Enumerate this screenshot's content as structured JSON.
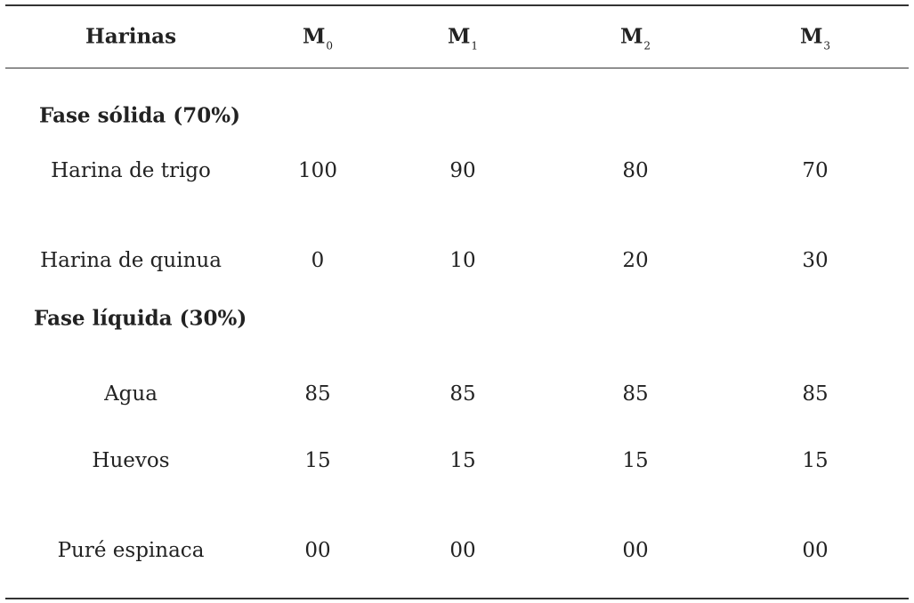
{
  "header": {
    "col0": "Harinas",
    "m0": {
      "letter": "M",
      "sub": "0"
    },
    "m1": {
      "letter": "M",
      "sub": "1"
    },
    "m2": {
      "letter": "M",
      "sub": "2"
    },
    "m3": {
      "letter": "M",
      "sub": "3"
    }
  },
  "sections": [
    {
      "title": "Fase sólida (70%)",
      "rows": [
        {
          "label": "Harina de trigo",
          "values": [
            "100",
            "90",
            "80",
            "70"
          ]
        },
        {
          "label": "Harina de quinua",
          "values": [
            "0",
            "10",
            "20",
            "30"
          ]
        }
      ]
    },
    {
      "title": "Fase líquida (30%)",
      "rows": [
        {
          "label": "Agua",
          "values": [
            "85",
            "85",
            "85",
            "85"
          ]
        },
        {
          "label": "Huevos",
          "values": [
            "15",
            "15",
            "15",
            "15"
          ]
        },
        {
          "label": "Puré espinaca",
          "values": [
            "00",
            "00",
            "00",
            "00"
          ]
        }
      ]
    }
  ]
}
